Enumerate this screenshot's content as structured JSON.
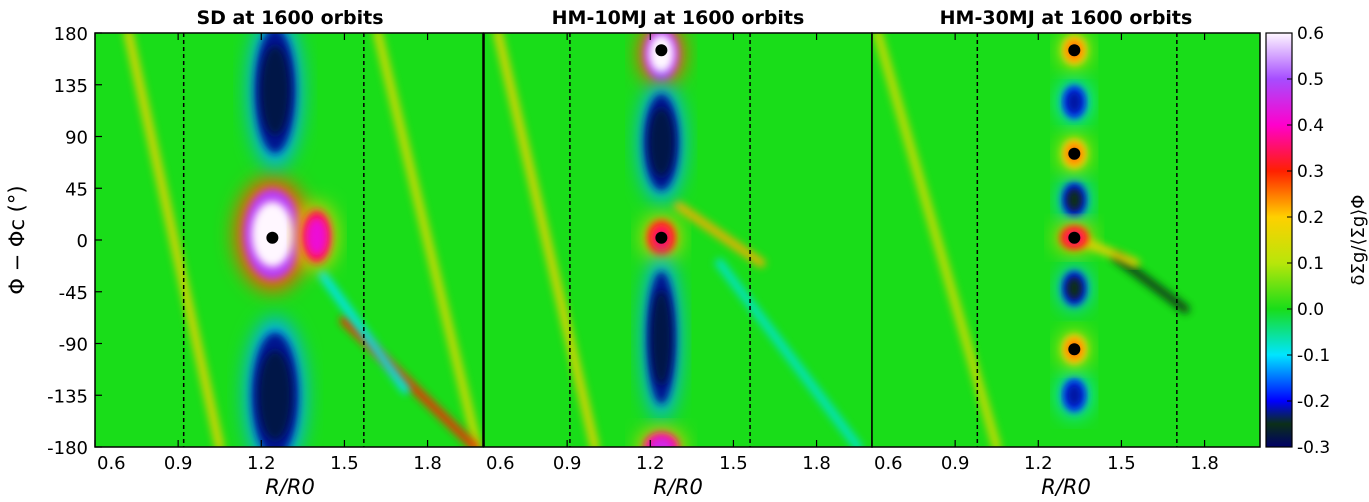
{
  "chart_data": {
    "type": "heatmap",
    "panels": [
      {
        "id": "sd",
        "title": "SD at 1600 orbits",
        "xlim": [
          0.6,
          2.0
        ],
        "xticks": [
          0.6,
          0.9,
          1.2,
          1.5,
          1.8
        ],
        "tick_labels": [
          "0.6",
          "0.9",
          "1.2",
          "1.5",
          "1.8"
        ],
        "vlines": [
          0.92,
          1.57
        ],
        "markers": [
          {
            "x": 1.24,
            "y": 2
          }
        ],
        "features": [
          {
            "x": 1.24,
            "y": 5,
            "rx": 0.1,
            "ry": 38,
            "value": 0.6
          },
          {
            "x": 1.4,
            "y": 3,
            "rx": 0.05,
            "ry": 22,
            "value": 0.42
          },
          {
            "x": 1.25,
            "y": 130,
            "rx": 0.07,
            "ry": 52,
            "value": -0.28
          },
          {
            "x": 1.25,
            "y": -135,
            "rx": 0.08,
            "ry": 52,
            "value": -0.28
          }
        ],
        "streaks": [
          {
            "y0": 180,
            "y1": -180,
            "x0": 0.72,
            "x1": 1.05,
            "value": 0.18
          },
          {
            "y0": 180,
            "y1": -180,
            "x0": 1.62,
            "x1": 1.98,
            "value": 0.16
          },
          {
            "y0": -70,
            "y1": -180,
            "x0": 1.5,
            "x1": 1.97,
            "value": 0.3
          },
          {
            "y0": -30,
            "y1": -130,
            "x0": 1.42,
            "x1": 1.72,
            "value": -0.1
          }
        ]
      },
      {
        "id": "hm10",
        "title": "HM-10MJ at 1600 orbits",
        "xlim": [
          0.6,
          2.0
        ],
        "xticks": [
          0.6,
          0.9,
          1.2,
          1.5,
          1.8
        ],
        "tick_labels": [
          "0.6",
          "0.9",
          "1.2",
          "1.5",
          "1.8"
        ],
        "vlines": [
          0.91,
          1.56
        ],
        "markers": [
          {
            "x": 1.24,
            "y": 165
          },
          {
            "x": 1.24,
            "y": 2
          }
        ],
        "features": [
          {
            "x": 1.24,
            "y": 162,
            "rx": 0.06,
            "ry": 22,
            "value": 0.6
          },
          {
            "x": 1.24,
            "y": 2,
            "rx": 0.05,
            "ry": 15,
            "value": 0.35
          },
          {
            "x": 1.24,
            "y": 85,
            "rx": 0.06,
            "ry": 40,
            "value": -0.28
          },
          {
            "x": 1.24,
            "y": -85,
            "rx": 0.05,
            "ry": 55,
            "value": -0.28
          },
          {
            "x": 1.24,
            "y": -180,
            "rx": 0.06,
            "ry": 12,
            "value": 0.45
          }
        ],
        "streaks": [
          {
            "y0": 180,
            "y1": -180,
            "x0": 0.65,
            "x1": 1.0,
            "value": 0.18
          },
          {
            "y0": 30,
            "y1": -20,
            "x0": 1.3,
            "x1": 1.6,
            "value": 0.22
          },
          {
            "y0": -20,
            "y1": -180,
            "x0": 1.45,
            "x1": 1.95,
            "value": -0.08
          }
        ]
      },
      {
        "id": "hm30",
        "title": "HM-30MJ at 1600 orbits",
        "xlim": [
          0.6,
          2.0
        ],
        "xticks": [
          0.6,
          0.9,
          1.2,
          1.5,
          1.8
        ],
        "tick_labels": [
          "0.6",
          "0.9",
          "1.2",
          "1.5",
          "1.8"
        ],
        "vlines": [
          0.98,
          1.7
        ],
        "markers": [
          {
            "x": 1.33,
            "y": 165
          },
          {
            "x": 1.33,
            "y": 75
          },
          {
            "x": 1.33,
            "y": 2
          },
          {
            "x": 1.33,
            "y": -95
          }
        ],
        "features": [
          {
            "x": 1.33,
            "y": 120,
            "rx": 0.04,
            "ry": 14,
            "value": -0.22
          },
          {
            "x": 1.33,
            "y": 35,
            "rx": 0.04,
            "ry": 14,
            "value": -0.25
          },
          {
            "x": 1.33,
            "y": -42,
            "rx": 0.04,
            "ry": 14,
            "value": -0.25
          },
          {
            "x": 1.33,
            "y": -135,
            "rx": 0.04,
            "ry": 14,
            "value": -0.22
          },
          {
            "x": 1.33,
            "y": 165,
            "rx": 0.04,
            "ry": 12,
            "value": 0.25
          },
          {
            "x": 1.33,
            "y": 75,
            "rx": 0.04,
            "ry": 12,
            "value": 0.25
          },
          {
            "x": 1.33,
            "y": 2,
            "rx": 0.05,
            "ry": 10,
            "value": 0.35
          },
          {
            "x": 1.33,
            "y": -95,
            "rx": 0.04,
            "ry": 12,
            "value": 0.25
          }
        ],
        "streaks": [
          {
            "y0": 180,
            "y1": -180,
            "x0": 0.62,
            "x1": 1.05,
            "value": 0.15
          },
          {
            "y0": -15,
            "y1": -60,
            "x0": 1.48,
            "x1": 1.73,
            "value": -0.25
          },
          {
            "y0": 0,
            "y1": -20,
            "x0": 1.35,
            "x1": 1.55,
            "value": 0.2
          }
        ]
      }
    ],
    "ylim": [
      -180,
      180
    ],
    "yticks": [
      180,
      135,
      90,
      45,
      0,
      -45,
      -90,
      -135,
      -180
    ],
    "ytick_labels": [
      "180",
      "135",
      "90",
      "45",
      "0",
      "-45",
      "-90",
      "-135",
      "-180"
    ],
    "ylabel": "Φ − Φc (°)",
    "xlabel": "R/R0",
    "colorbar": {
      "label": "δΣg/⟨Σg⟩Φ",
      "range": [
        -0.3,
        0.6
      ],
      "ticks": [
        0.6,
        0.5,
        0.4,
        0.3,
        0.2,
        0.1,
        0.0,
        -0.1,
        -0.2,
        -0.3
      ],
      "tick_labels": [
        "0.6",
        "0.5",
        "0.4",
        "0.3",
        "0.2",
        "0.1",
        "0.0",
        "-0.1",
        "-0.2",
        "-0.3"
      ],
      "stops": [
        {
          "value": -0.3,
          "color": "#000066"
        },
        {
          "value": -0.25,
          "color": "#0b2f18"
        },
        {
          "value": -0.2,
          "color": "#0000ff"
        },
        {
          "value": -0.1,
          "color": "#00e5ff"
        },
        {
          "value": 0.0,
          "color": "#19dd19"
        },
        {
          "value": 0.1,
          "color": "#b8e60a"
        },
        {
          "value": 0.2,
          "color": "#ffd000"
        },
        {
          "value": 0.3,
          "color": "#ff2000"
        },
        {
          "value": 0.4,
          "color": "#ff00cc"
        },
        {
          "value": 0.5,
          "color": "#a64dff"
        },
        {
          "value": 0.6,
          "color": "#fff7ff"
        }
      ]
    }
  }
}
